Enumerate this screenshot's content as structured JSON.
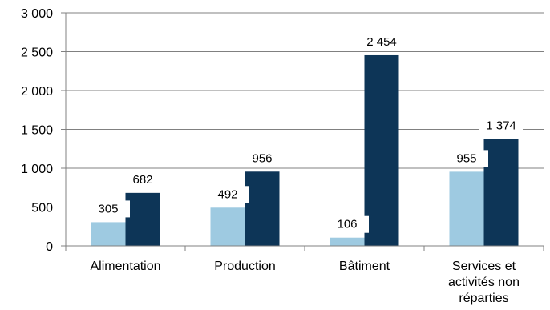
{
  "chart_data": {
    "type": "bar",
    "categories": [
      [
        "Alimentation"
      ],
      [
        "Production"
      ],
      [
        "Bâtiment"
      ],
      [
        "Services et",
        "activités non",
        "réparties"
      ]
    ],
    "series": [
      {
        "values": [
          305,
          492,
          106,
          955
        ],
        "value_labels": [
          "305",
          "492",
          "106",
          "955"
        ],
        "color": "#9ecae1"
      },
      {
        "values": [
          682,
          956,
          2454,
          1374
        ],
        "value_labels": [
          "682",
          "956",
          "2 454",
          "1 374"
        ],
        "color": "#0d3557"
      }
    ],
    "ylim": [
      0,
      3000
    ],
    "yticks": [
      0,
      500,
      1000,
      1500,
      2000,
      2500,
      3000
    ],
    "ytick_labels": [
      "0",
      "500",
      "1 000",
      "1 500",
      "2 000",
      "2 500",
      "3 000"
    ],
    "grid": true,
    "colors": {
      "grid": "#808080",
      "axis": "#808080"
    }
  }
}
